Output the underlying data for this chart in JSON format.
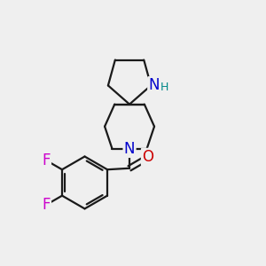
{
  "bg_color": "#efefef",
  "bond_color": "#1a1a1a",
  "N_color": "#0000cc",
  "H_color": "#008888",
  "O_color": "#cc0000",
  "F_color": "#cc00cc",
  "lw": 1.6,
  "xlim": [
    0,
    10
  ],
  "ylim": [
    0,
    10
  ]
}
